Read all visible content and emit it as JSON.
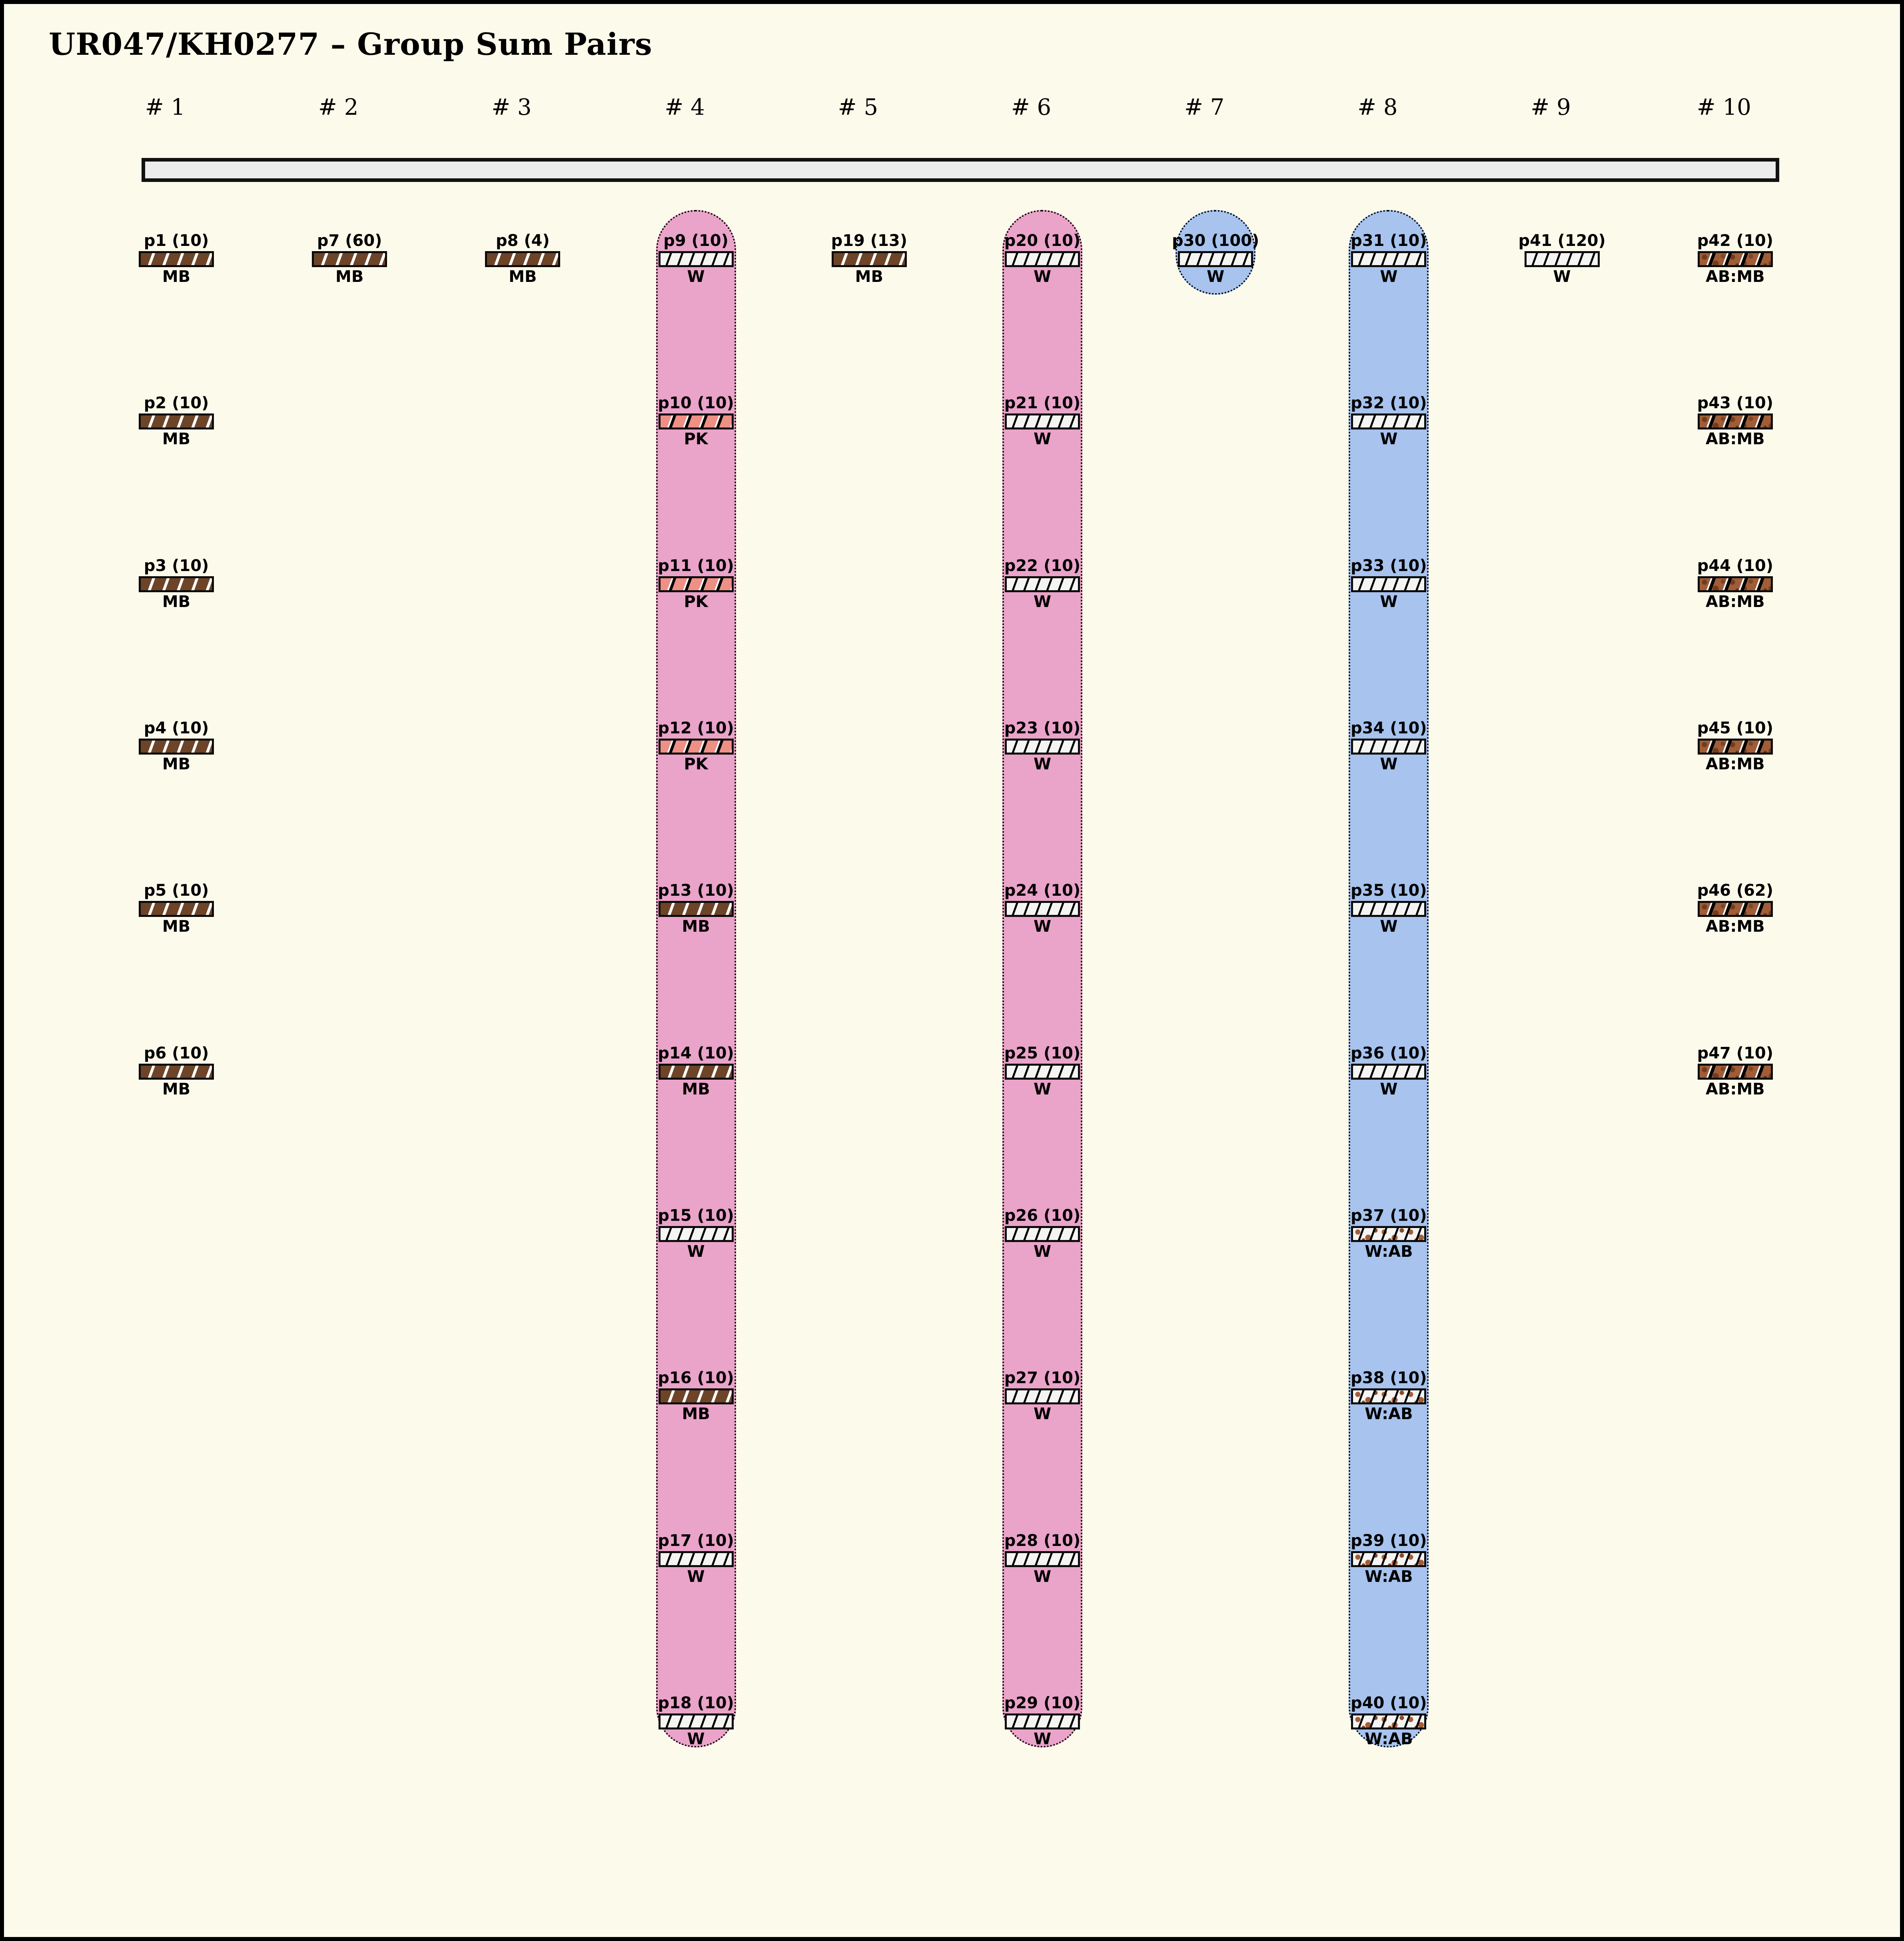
{
  "title": "UR047/KH0277 – Group Sum Pairs",
  "colors": {
    "background": "#fcfaeb",
    "frame": "#000000",
    "gray_group_bar": "#ececec",
    "pink_band": "#eaa3c9",
    "blue_band": "#a7c3ee",
    "mb_fill": "#6d4428",
    "pk_fill": "#ee9086",
    "w_fill": "#f4f4f2",
    "ab_speckle": "#a55e36",
    "abmb_fill": "#a05d38",
    "abmb_speckle": "#6e3d1e"
  },
  "group_bar": {
    "present": true
  },
  "columns": [
    {
      "index": 1,
      "header": "# 1",
      "band": null,
      "items": [
        {
          "label": "p1 (10)",
          "tag": "MB"
        },
        {
          "label": "p2 (10)",
          "tag": "MB"
        },
        {
          "label": "p3 (10)",
          "tag": "MB"
        },
        {
          "label": "p4 (10)",
          "tag": "MB"
        },
        {
          "label": "p5 (10)",
          "tag": "MB"
        },
        {
          "label": "p6 (10)",
          "tag": "MB"
        }
      ]
    },
    {
      "index": 2,
      "header": "# 2",
      "band": null,
      "items": [
        {
          "label": "p7 (60)",
          "tag": "MB"
        }
      ]
    },
    {
      "index": 3,
      "header": "# 3",
      "band": null,
      "items": [
        {
          "label": "p8 (4)",
          "tag": "MB"
        }
      ]
    },
    {
      "index": 4,
      "header": "# 4",
      "band": "pink",
      "items": [
        {
          "label": "p9 (10)",
          "tag": "W"
        },
        {
          "label": "p10 (10)",
          "tag": "PK"
        },
        {
          "label": "p11 (10)",
          "tag": "PK"
        },
        {
          "label": "p12 (10)",
          "tag": "PK"
        },
        {
          "label": "p13 (10)",
          "tag": "MB"
        },
        {
          "label": "p14 (10)",
          "tag": "MB"
        },
        {
          "label": "p15 (10)",
          "tag": "W"
        },
        {
          "label": "p16 (10)",
          "tag": "MB"
        },
        {
          "label": "p17 (10)",
          "tag": "W"
        },
        {
          "label": "p18 (10)",
          "tag": "W"
        }
      ]
    },
    {
      "index": 5,
      "header": "# 5",
      "band": null,
      "items": [
        {
          "label": "p19 (13)",
          "tag": "MB"
        }
      ]
    },
    {
      "index": 6,
      "header": "# 6",
      "band": "pink",
      "items": [
        {
          "label": "p20 (10)",
          "tag": "W"
        },
        {
          "label": "p21 (10)",
          "tag": "W"
        },
        {
          "label": "p22 (10)",
          "tag": "W"
        },
        {
          "label": "p23 (10)",
          "tag": "W"
        },
        {
          "label": "p24 (10)",
          "tag": "W"
        },
        {
          "label": "p25 (10)",
          "tag": "W"
        },
        {
          "label": "p26 (10)",
          "tag": "W"
        },
        {
          "label": "p27 (10)",
          "tag": "W"
        },
        {
          "label": "p28 (10)",
          "tag": "W"
        },
        {
          "label": "p29 (10)",
          "tag": "W"
        }
      ]
    },
    {
      "index": 7,
      "header": "# 7",
      "band": "blue",
      "items": [
        {
          "label": "p30 (100)",
          "tag": "W"
        }
      ]
    },
    {
      "index": 8,
      "header": "# 8",
      "band": "blue",
      "items": [
        {
          "label": "p31 (10)",
          "tag": "W"
        },
        {
          "label": "p32 (10)",
          "tag": "W"
        },
        {
          "label": "p33 (10)",
          "tag": "W"
        },
        {
          "label": "p34 (10)",
          "tag": "W"
        },
        {
          "label": "p35 (10)",
          "tag": "W"
        },
        {
          "label": "p36 (10)",
          "tag": "W"
        },
        {
          "label": "p37 (10)",
          "tag": "W:AB"
        },
        {
          "label": "p38 (10)",
          "tag": "W:AB"
        },
        {
          "label": "p39 (10)",
          "tag": "W:AB"
        },
        {
          "label": "p40 (10)",
          "tag": "W:AB"
        }
      ]
    },
    {
      "index": 9,
      "header": "# 9",
      "band": null,
      "items": [
        {
          "label": "p41 (120)",
          "tag": "W"
        }
      ]
    },
    {
      "index": 10,
      "header": "# 10",
      "band": null,
      "items": [
        {
          "label": "p42 (10)",
          "tag": "AB:MB"
        },
        {
          "label": "p43 (10)",
          "tag": "AB:MB"
        },
        {
          "label": "p44 (10)",
          "tag": "AB:MB"
        },
        {
          "label": "p45 (10)",
          "tag": "AB:MB"
        },
        {
          "label": "p46 (62)",
          "tag": "AB:MB"
        },
        {
          "label": "p47 (10)",
          "tag": "AB:MB"
        }
      ]
    }
  ]
}
